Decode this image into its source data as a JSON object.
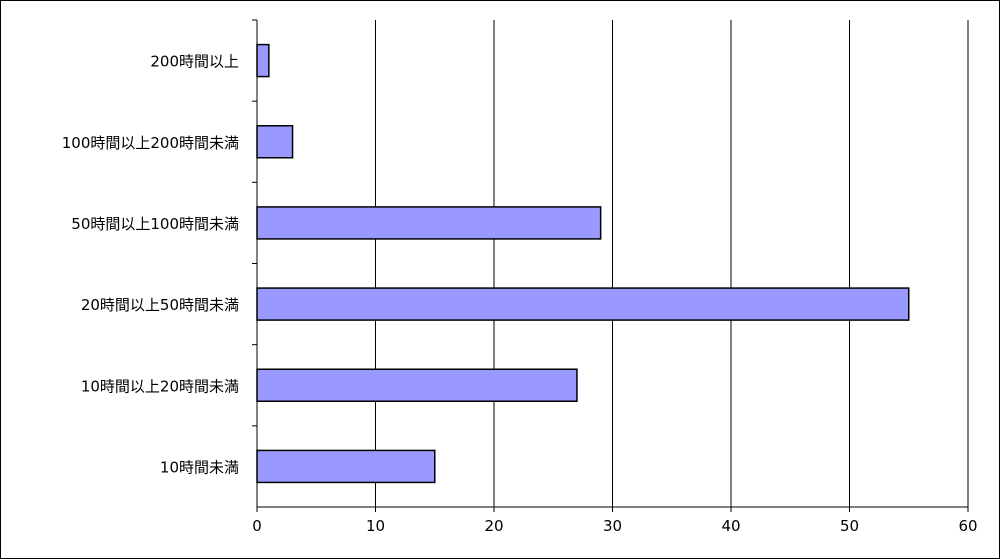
{
  "chart_data": {
    "type": "bar",
    "orientation": "horizontal",
    "title": "",
    "xlabel": "",
    "ylabel": "",
    "categories": [
      "200時間以上",
      "100時間以上200時間未満",
      "50時間以上100時間未満",
      "20時間以上50時間未満",
      "10時間以上20時間未満",
      "10時間未満"
    ],
    "values": [
      1,
      3,
      29,
      55,
      27,
      15
    ],
    "xlim": [
      0,
      60
    ],
    "xticks": [
      0,
      10,
      20,
      30,
      40,
      50,
      60
    ],
    "grid": "vertical",
    "legend": "none",
    "colors": {
      "bar_fill": "#9999ff",
      "bar_stroke": "#000000",
      "grid": "#000000",
      "background": "#ffffff"
    }
  }
}
